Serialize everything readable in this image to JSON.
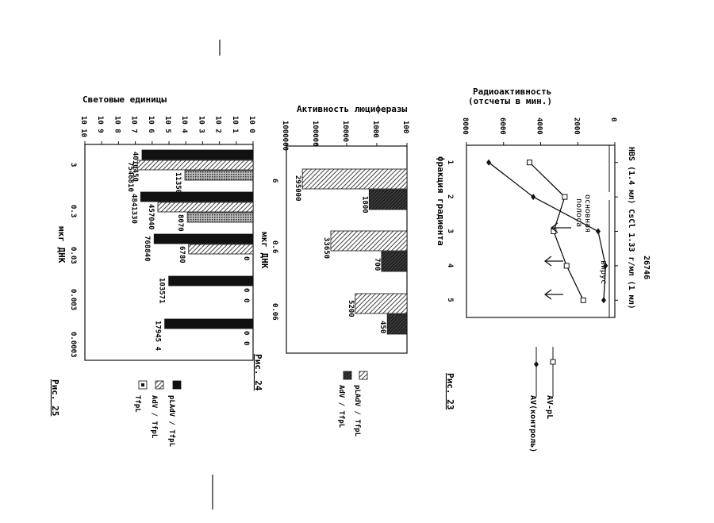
{
  "fig23": {
    "caption": "Рис. 23",
    "ylabel_line1": "Радиоактивность",
    "ylabel_line2": "(отсчеты в мин.)",
    "top_note": "HBS (1.4 мл) CsCl 1.33 г/мл (1 мл)",
    "batch": "26746",
    "virus_label": "вирус",
    "band_label_line1": "основная",
    "band_label_line2": "полоса",
    "legend": [
      "AV-pL",
      "AV(контроль)"
    ]
  },
  "fig24": {
    "caption": "Рис. 24",
    "title": "Активность люциферазы",
    "legend": [
      "pLAdV / TfpL",
      "AdV / TfpL"
    ]
  },
  "fig25": {
    "caption": "Рис. 25",
    "title": "Световые единицы",
    "legend": [
      "pLAdV / TfpL",
      "AdV / TfpL",
      "TfpL"
    ]
  },
  "chart_data": [
    {
      "id": "fig23",
      "type": "line",
      "title": "",
      "ylabel": "Радиоактивность (отсчеты в мин.)",
      "xlabel": "фракция градиента",
      "x": [
        1,
        2,
        3,
        4,
        5
      ],
      "xlim": [
        0.5,
        5.5
      ],
      "ylim": [
        0,
        8000
      ],
      "yticks": [
        0,
        2000,
        4000,
        6000,
        8000
      ],
      "series": [
        {
          "name": "AV-pL",
          "marker": "square",
          "values": [
            4600,
            2700,
            3300,
            2600,
            1700
          ]
        },
        {
          "name": "AV(контроль)",
          "marker": "diamond",
          "values": [
            6800,
            4400,
            900,
            500,
            600
          ]
        }
      ],
      "annotations": [
        "основная полоса",
        "вирус"
      ]
    },
    {
      "id": "fig24",
      "type": "bar",
      "title": "Активность люциферазы",
      "xlabel": "мкг ДНК",
      "categories": [
        "6",
        "0.6",
        "0.06"
      ],
      "yscale": "log",
      "ylim": [
        100,
        1000000
      ],
      "yticks": [
        100,
        1000,
        10000,
        100000,
        1000000
      ],
      "ytick_labels": [
        "100",
        "1000",
        "10000",
        "100000",
        "1000000"
      ],
      "series": [
        {
          "name": "pLAdV / TfpL",
          "values": [
            295000,
            33650,
            5200
          ],
          "labels": [
            "295000",
            "33650",
            "5200"
          ]
        },
        {
          "name": "AdV / TfpL",
          "values": [
            1800,
            700,
            450
          ],
          "labels": [
            "1800",
            "700",
            "450"
          ]
        }
      ]
    },
    {
      "id": "fig25",
      "type": "bar",
      "title": "Световые единицы",
      "xlabel": "мкг ДНК",
      "categories": [
        "3",
        "0.3",
        "0.03",
        "0.003",
        "0.0003"
      ],
      "yscale": "log",
      "ylim": [
        1,
        10000000000
      ],
      "yticks": [
        1,
        10,
        100,
        1000,
        10000,
        100000,
        1000000,
        10000000,
        100000000,
        1000000000,
        10000000000
      ],
      "ytick_labels": [
        "10 0",
        "10 1",
        "10 2",
        "10 3",
        "10 4",
        "10 5",
        "10 6",
        "10 7",
        "10 8",
        "10 9",
        "10 10"
      ],
      "series": [
        {
          "name": "pLAdV / TfpL",
          "values": [
            4010450,
            4841330,
            768840,
            103571,
            179454
          ],
          "labels": [
            "4010450",
            "4841330",
            "768840",
            "103571",
            "17945 4"
          ]
        },
        {
          "name": "AdV / TfpL",
          "values": [
            7546810,
            457040,
            6780,
            0,
            0
          ],
          "labels": [
            "7546810",
            "457040",
            "6780",
            "0",
            "0"
          ]
        },
        {
          "name": "TfpL",
          "values": [
            11350,
            8070,
            0,
            0,
            0
          ],
          "labels": [
            "11350",
            "8070",
            "0",
            "0",
            "0"
          ]
        }
      ]
    }
  ]
}
